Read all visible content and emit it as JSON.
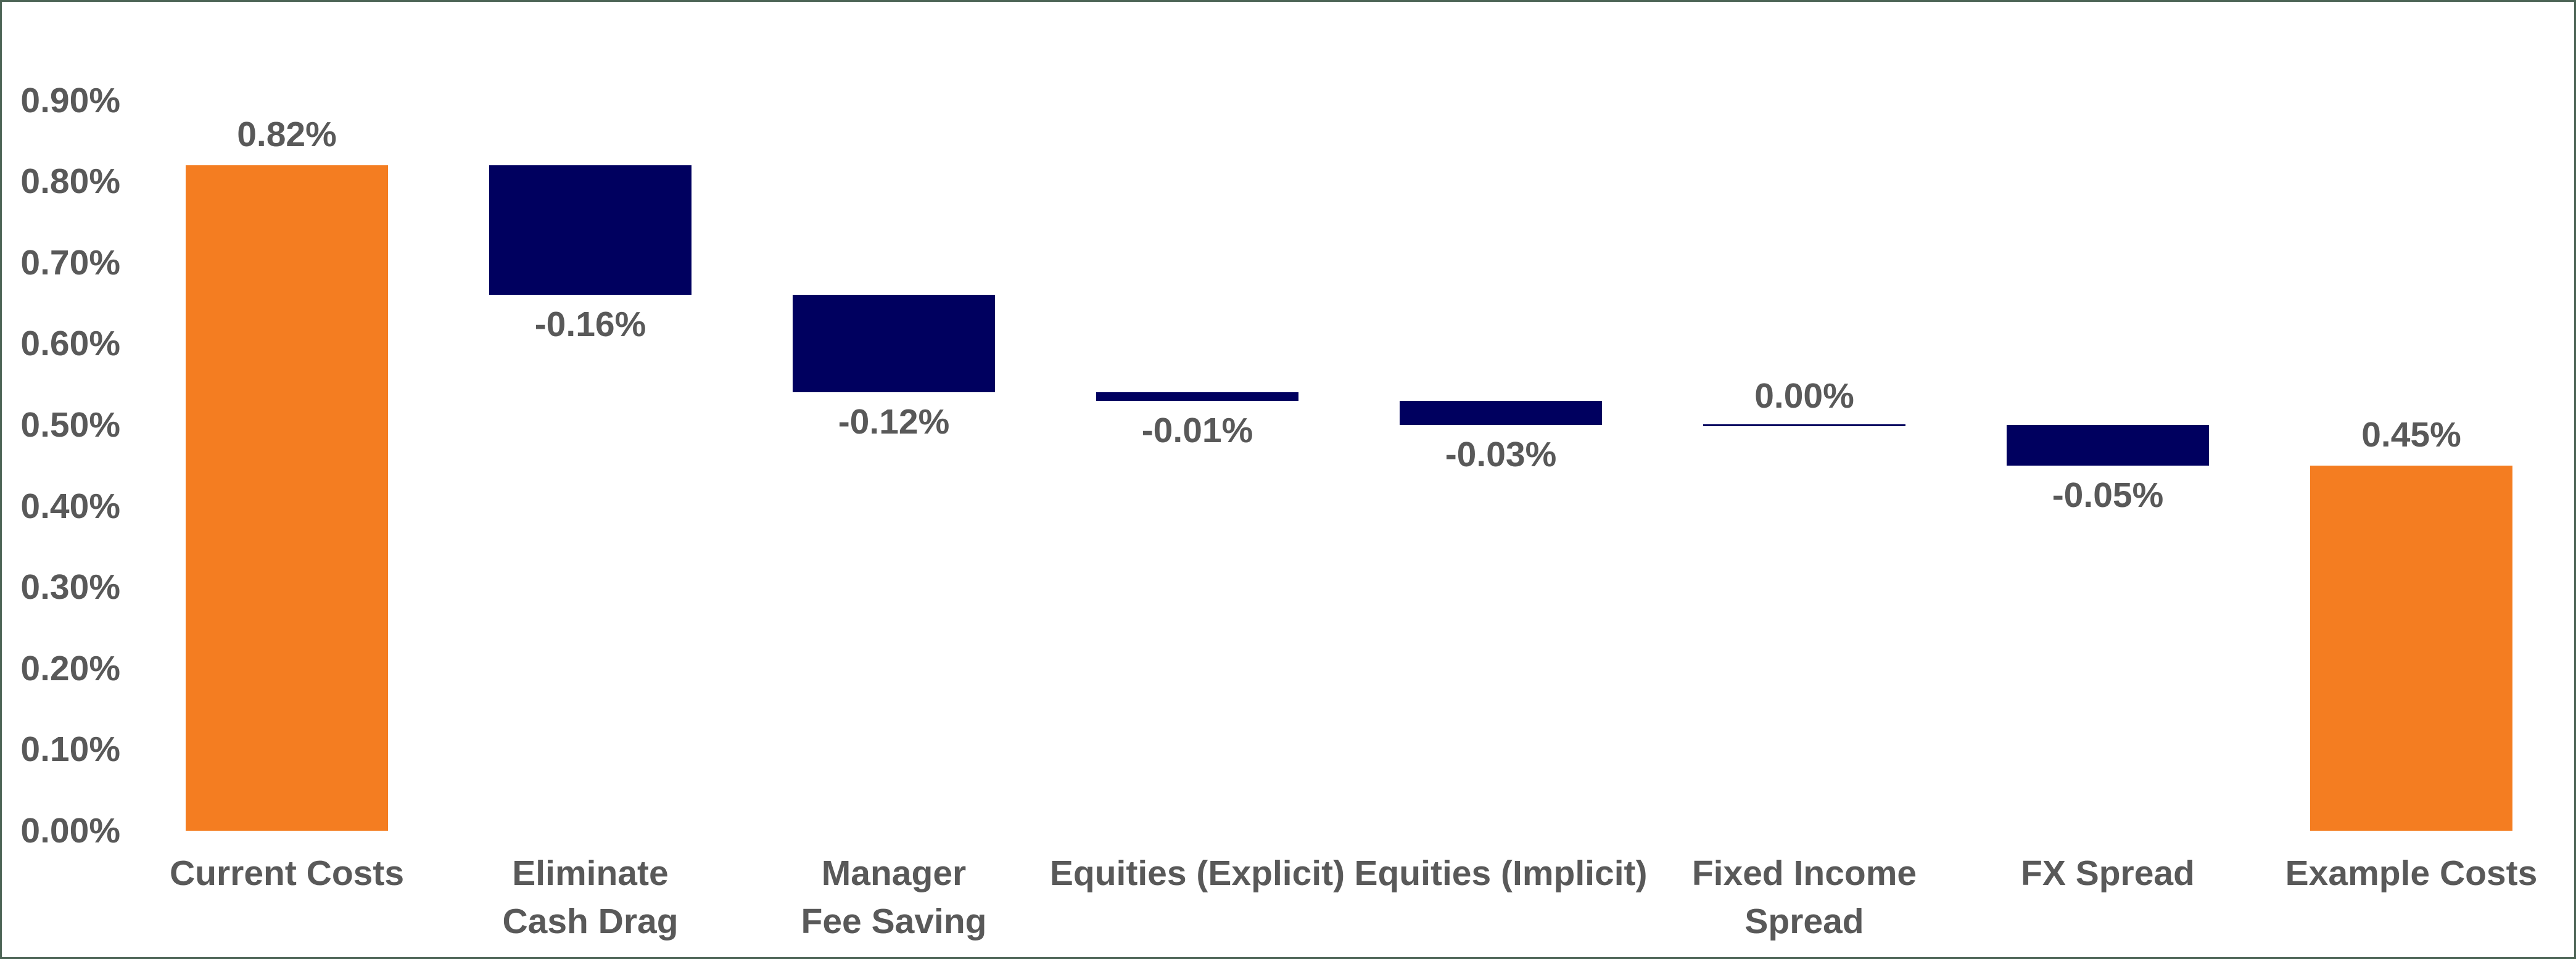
{
  "chart_data": {
    "type": "bar",
    "subtype": "waterfall",
    "title": "",
    "xlabel": "",
    "ylabel": "",
    "y_axis": {
      "min": 0.0,
      "max": 0.9,
      "step": 0.1,
      "tick_labels": [
        "0.90%",
        "0.80%",
        "0.70%",
        "0.60%",
        "0.50%",
        "0.40%",
        "0.30%",
        "0.20%",
        "0.10%",
        "0.00%"
      ],
      "grid": "off"
    },
    "legend": "none",
    "bars": [
      {
        "category_lines": [
          "Current Costs"
        ],
        "value": 0.82,
        "value_label": "0.82%",
        "kind": "total"
      },
      {
        "category_lines": [
          "Eliminate",
          "Cash Drag"
        ],
        "value": -0.16,
        "value_label": "-0.16%",
        "kind": "delta"
      },
      {
        "category_lines": [
          "Manager",
          "Fee Saving"
        ],
        "value": -0.12,
        "value_label": "-0.12%",
        "kind": "delta"
      },
      {
        "category_lines": [
          "Equities (Explicit)"
        ],
        "value": -0.01,
        "value_label": "-0.01%",
        "kind": "delta"
      },
      {
        "category_lines": [
          "Equities (Implicit)"
        ],
        "value": -0.03,
        "value_label": "-0.03%",
        "kind": "delta"
      },
      {
        "category_lines": [
          "Fixed Income",
          "Spread"
        ],
        "value": 0.0,
        "value_label": "0.00%",
        "kind": "zero"
      },
      {
        "category_lines": [
          "FX Spread"
        ],
        "value": -0.05,
        "value_label": "-0.05%",
        "kind": "delta"
      },
      {
        "category_lines": [
          "Example Costs"
        ],
        "value": 0.45,
        "value_label": "0.45%",
        "kind": "total"
      }
    ],
    "running_levels_after": [
      0.82,
      0.66,
      0.54,
      0.53,
      0.5,
      0.5,
      0.45,
      0.45
    ],
    "colors": {
      "total_bar": "#f47d21",
      "delta_bar": "#00005f",
      "zero_connector": "#00005f",
      "value_label_text": "#595959",
      "axis_text": "#595959",
      "category_text": "#595959",
      "frame_border": "#4c6455",
      "background": "#ffffff"
    }
  }
}
